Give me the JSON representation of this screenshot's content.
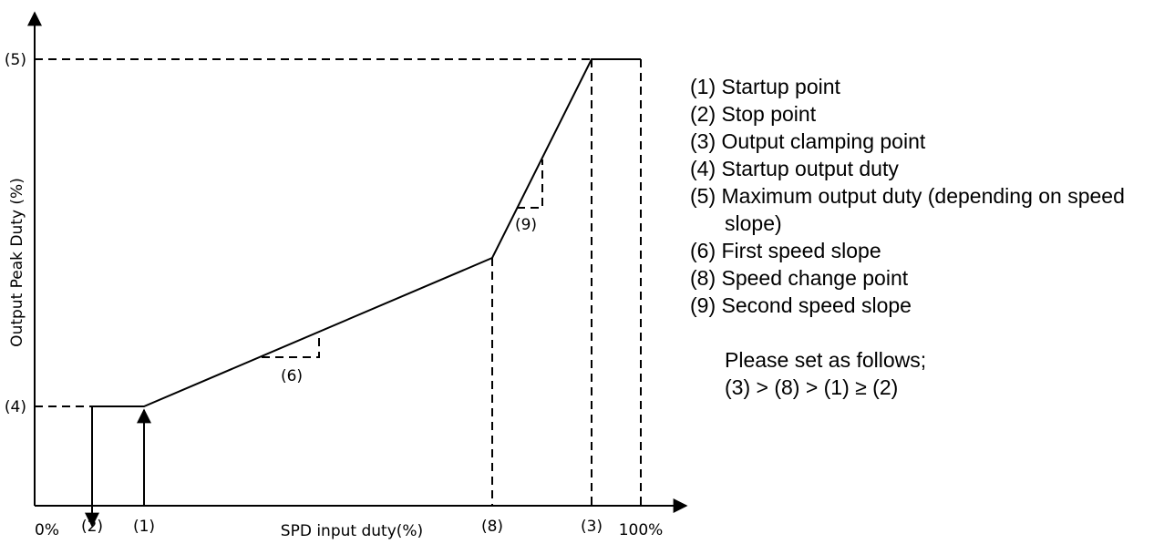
{
  "axes": {
    "x_title": "SPD input duty(%)",
    "y_title": "Output Peak Duty (%)",
    "x_ticks": {
      "start": "0%",
      "stop_point": "(2)",
      "startup_point": "(1)",
      "speed_change_point": "(8)",
      "clamping_point": "(3)",
      "end": "100%"
    },
    "y_ticks": {
      "max_output": "(5)",
      "startup_output": "(4)"
    }
  },
  "annotations": {
    "first_slope": "(6)",
    "second_slope": "(9)"
  },
  "legend": {
    "items": [
      "(1) Startup point",
      "(2) Stop point",
      "(3) Output clamping point",
      "(4) Startup output duty",
      "(5) Maximum output duty (depending on speed slope)",
      "(6) First speed slope",
      "(8) Speed change point",
      "(9) Second speed slope"
    ],
    "note_line1": "Please set as follows;",
    "note_line2": "(3) > (8) > (1) ≥ (2)"
  }
}
